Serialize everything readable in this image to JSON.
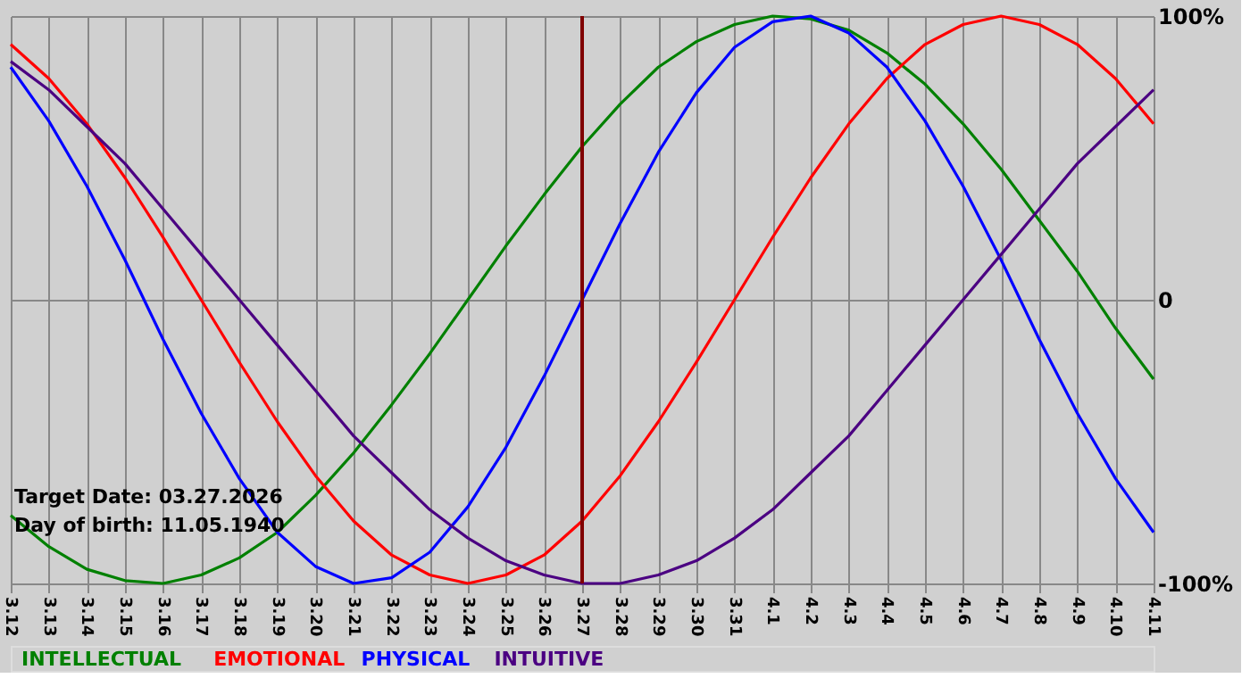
{
  "chart_data": {
    "type": "line",
    "categories": [
      "3.12",
      "3.13",
      "3.14",
      "3.15",
      "3.16",
      "3.17",
      "3.18",
      "3.19",
      "3.20",
      "3.21",
      "3.22",
      "3.23",
      "3.24",
      "3.25",
      "3.26",
      "3.27",
      "3.28",
      "3.29",
      "3.30",
      "3.31",
      "4.1",
      "4.2",
      "4.3",
      "4.4",
      "4.5",
      "4.6",
      "4.7",
      "4.8",
      "4.9",
      "4.10",
      "4.11"
    ],
    "series": [
      {
        "name": "INTELLECTUAL",
        "color": "#008000",
        "values": [
          -76,
          -87,
          -95,
          -99,
          -100,
          -97,
          -91,
          -82,
          -69,
          -54,
          -37,
          -19,
          0,
          19,
          37,
          54,
          69,
          82,
          91,
          97,
          100,
          99,
          95,
          87,
          76,
          62,
          46,
          28,
          10,
          -10,
          -28
        ]
      },
      {
        "name": "EMOTIONAL",
        "color": "#ff0000",
        "values": [
          90,
          78,
          62,
          43,
          22,
          0,
          -22,
          -43,
          -62,
          -78,
          -90,
          -97,
          -100,
          -97,
          -90,
          -78,
          -62,
          -43,
          -22,
          0,
          22,
          43,
          62,
          78,
          90,
          97,
          100,
          97,
          90,
          78,
          62
        ]
      },
      {
        "name": "PHYSICAL",
        "color": "#0000ff",
        "values": [
          82,
          63,
          40,
          14,
          -14,
          -40,
          -63,
          -82,
          -94,
          -100,
          -98,
          -89,
          -73,
          -52,
          -27,
          0,
          27,
          52,
          73,
          89,
          98,
          100,
          94,
          82,
          63,
          40,
          14,
          -14,
          -40,
          -63,
          -82
        ]
      },
      {
        "name": "INTUITIVE",
        "color": "#4b0082",
        "values": [
          84,
          74,
          61,
          48,
          32,
          16,
          0,
          -16,
          -32,
          -48,
          -61,
          -74,
          -84,
          -92,
          -97,
          -100,
          -100,
          -97,
          -92,
          -84,
          -74,
          -61,
          -48,
          -32,
          -16,
          0,
          16,
          32,
          48,
          61,
          74
        ]
      }
    ],
    "ylim": [
      -100,
      100
    ],
    "yticks": [
      {
        "value": 100,
        "label": "100%"
      },
      0,
      {
        "value": -100,
        "label": "-100%"
      }
    ],
    "grid": true,
    "legend": "bottom",
    "marker": "none",
    "line_style": "solid",
    "ref_lines": [
      {
        "axis": "x",
        "value": "3.27",
        "color": "#800000"
      }
    ],
    "annotations": [
      "Target Date: 03.27.2026",
      "Day of birth: 11.05.1940"
    ]
  }
}
